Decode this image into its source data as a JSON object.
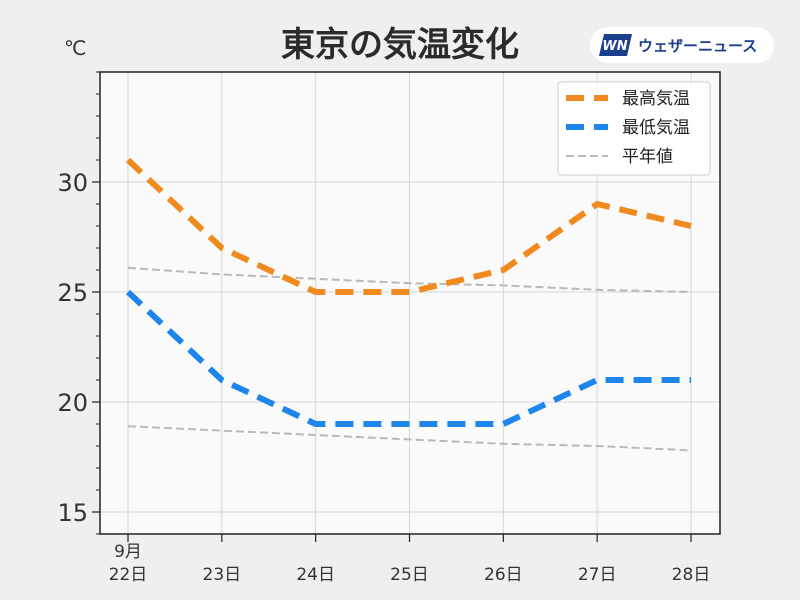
{
  "header": {
    "title": "東京の気温変化",
    "unit": "℃",
    "brand": "ウェザーニュース",
    "logo_mark": "WN"
  },
  "colors": {
    "background": "#f0eeee",
    "plot_background": "#fbfafb",
    "high": "#f08a1e",
    "low": "#1e86ea",
    "normal": "#b9b9b9",
    "brand": "#1b3f8c"
  },
  "chart_data": {
    "type": "line",
    "title": "東京の気温変化",
    "ylabel": "℃",
    "xlabel": "",
    "x": [
      "22日",
      "23日",
      "24日",
      "25日",
      "26日",
      "27日",
      "28日"
    ],
    "x_month_label": "9月",
    "ylim": [
      14,
      35
    ],
    "yticks": [
      15,
      20,
      25,
      30
    ],
    "grid": true,
    "legend_position": "top-right",
    "series": [
      {
        "name": "最高気温",
        "key": "high",
        "style": "dashed-thick",
        "values": [
          31,
          27,
          25,
          25,
          26,
          29,
          28
        ]
      },
      {
        "name": "最低気温",
        "key": "low",
        "style": "dashed-thick",
        "values": [
          25,
          21,
          19,
          19,
          19,
          21,
          21
        ]
      },
      {
        "name": "平年値",
        "key": "normal",
        "style": "dashed-thin",
        "values": [
          26.1,
          25.8,
          25.6,
          25.4,
          25.3,
          25.1,
          25.0
        ]
      },
      {
        "name": "平年値",
        "key": "normal",
        "style": "dashed-thin",
        "legend": false,
        "values": [
          18.9,
          18.7,
          18.5,
          18.3,
          18.1,
          18.0,
          17.8
        ]
      }
    ]
  }
}
